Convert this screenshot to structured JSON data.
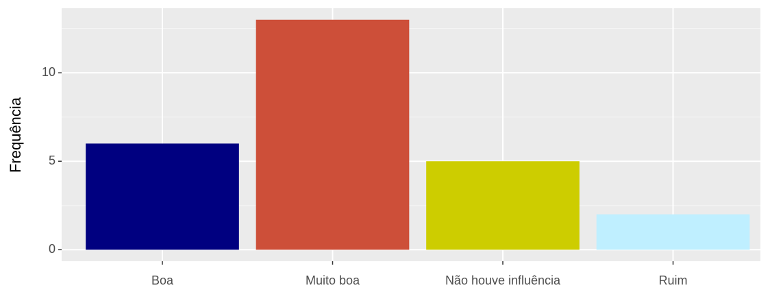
{
  "chart_data": {
    "type": "bar",
    "y_label": "Frequência",
    "categories": [
      "Boa",
      "Muito boa",
      "Não houve influência",
      "Ruim"
    ],
    "values": [
      6,
      13,
      5,
      2
    ],
    "colors": [
      "#000080",
      "#CD4F39",
      "#CDCD00",
      "#BFEFFF"
    ],
    "ylim": [
      -0.65,
      13.65
    ],
    "yticks": [
      0,
      5,
      10
    ],
    "minor_yticks": [
      2.5,
      7.5,
      12.5
    ],
    "grid": true
  }
}
